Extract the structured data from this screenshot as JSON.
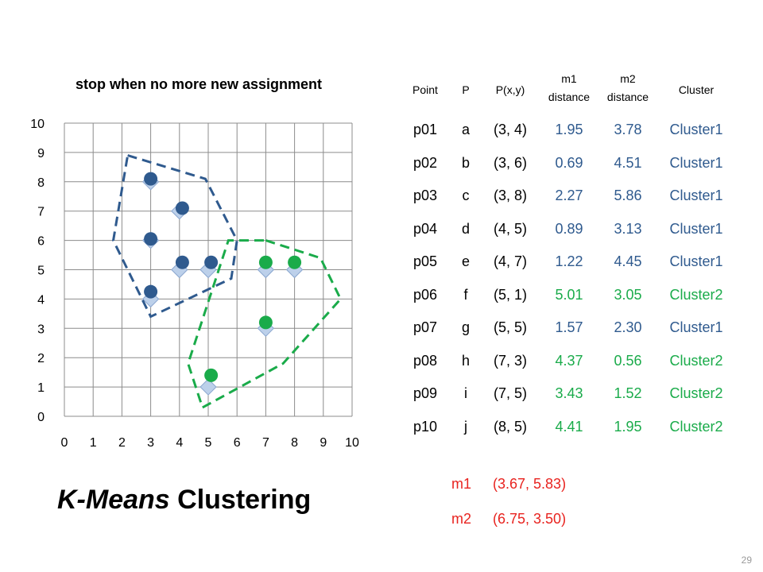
{
  "chart_data": {
    "type": "scatter",
    "title": "stop when no more new assignment",
    "xlim": [
      0,
      10
    ],
    "ylim": [
      0,
      10
    ],
    "x_ticks": [
      "0",
      "1",
      "2",
      "3",
      "4",
      "5",
      "6",
      "7",
      "8",
      "9",
      "10"
    ],
    "y_ticks": [
      "0",
      "1",
      "2",
      "3",
      "4",
      "5",
      "6",
      "7",
      "8",
      "9",
      "10"
    ],
    "grid": true,
    "data_points": [
      [
        3,
        4
      ],
      [
        3,
        6
      ],
      [
        3,
        8
      ],
      [
        4,
        5
      ],
      [
        4,
        7
      ],
      [
        5,
        1
      ],
      [
        5,
        5
      ],
      [
        7,
        3
      ],
      [
        7,
        5
      ],
      [
        8,
        5
      ]
    ],
    "series": [
      {
        "color": "#2f5a8e",
        "points": [
          [
            3.0,
            8.1
          ],
          [
            4.1,
            7.1
          ],
          [
            3.0,
            6.05
          ],
          [
            4.1,
            5.25
          ],
          [
            5.1,
            5.25
          ],
          [
            3.0,
            4.25
          ]
        ]
      },
      {
        "color": "#1aab4a",
        "points": [
          [
            7.0,
            5.25
          ],
          [
            8.0,
            5.25
          ],
          [
            7.0,
            3.2
          ],
          [
            5.1,
            1.4
          ]
        ]
      }
    ],
    "boundaries": [
      {
        "color": "#2f5a8e",
        "points": [
          [
            2.2,
            8.9
          ],
          [
            4.9,
            8.1
          ],
          [
            6.0,
            6.0
          ],
          [
            5.8,
            4.7
          ],
          [
            3.0,
            3.4
          ],
          [
            1.7,
            6.0
          ]
        ]
      },
      {
        "color": "#1aab4a",
        "points": [
          [
            7.0,
            6.0
          ],
          [
            8.9,
            5.4
          ],
          [
            9.6,
            4.0
          ],
          [
            7.6,
            1.8
          ],
          [
            4.8,
            0.3
          ],
          [
            4.3,
            1.8
          ],
          [
            5.7,
            6.0
          ]
        ]
      }
    ]
  },
  "table": {
    "headers": [
      "Point",
      "P",
      "P(x,y)",
      "m1 distance",
      "m2 distance",
      "Cluster"
    ],
    "rows": [
      {
        "point": "p01",
        "p": "a",
        "pxy": "(3, 4)",
        "m1": "1.95",
        "m2": "3.78",
        "cluster": "Cluster1"
      },
      {
        "point": "p02",
        "p": "b",
        "pxy": "(3, 6)",
        "m1": "0.69",
        "m2": "4.51",
        "cluster": "Cluster1"
      },
      {
        "point": "p03",
        "p": "c",
        "pxy": "(3, 8)",
        "m1": "2.27",
        "m2": "5.86",
        "cluster": "Cluster1"
      },
      {
        "point": "p04",
        "p": "d",
        "pxy": "(4, 5)",
        "m1": "0.89",
        "m2": "3.13",
        "cluster": "Cluster1"
      },
      {
        "point": "p05",
        "p": "e",
        "pxy": "(4, 7)",
        "m1": "1.22",
        "m2": "4.45",
        "cluster": "Cluster1"
      },
      {
        "point": "p06",
        "p": "f",
        "pxy": "(5, 1)",
        "m1": "5.01",
        "m2": "3.05",
        "cluster": "Cluster2"
      },
      {
        "point": "p07",
        "p": "g",
        "pxy": "(5, 5)",
        "m1": "1.57",
        "m2": "2.30",
        "cluster": "Cluster1"
      },
      {
        "point": "p08",
        "p": "h",
        "pxy": "(7, 3)",
        "m1": "4.37",
        "m2": "0.56",
        "cluster": "Cluster2"
      },
      {
        "point": "p09",
        "p": "i",
        "pxy": "(7, 5)",
        "m1": "3.43",
        "m2": "1.52",
        "cluster": "Cluster2"
      },
      {
        "point": "p10",
        "p": "j",
        "pxy": "(8, 5)",
        "m1": "4.41",
        "m2": "1.95",
        "cluster": "Cluster2"
      }
    ],
    "cluster_colors": {
      "Cluster1": "#2f5a8e",
      "Cluster2": "#1aab4a"
    }
  },
  "means": [
    {
      "label": "m1",
      "value": "(3.67, 5.83)"
    },
    {
      "label": "m2",
      "value": "(6.75, 3.50)"
    }
  ],
  "heading": {
    "italic": "K-Means",
    "rest": " Clustering"
  },
  "page_number": "29"
}
